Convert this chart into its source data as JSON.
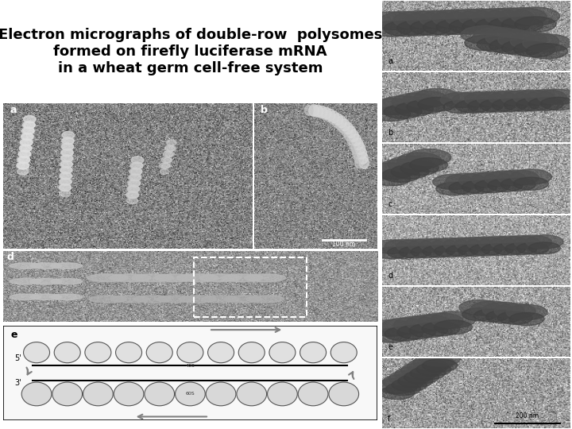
{
  "title_line1": "Electron micrographs of double-row  polysomes",
  "title_line2": "formed on firefly luciferase mRNA",
  "title_line3": "in a wheat germ cell-free system",
  "title_fontsize": 13,
  "title_fontweight": "bold",
  "bg_color": "#ffffff",
  "left_panel_bg": "#888888",
  "right_panel_bg": "#cccccc",
  "bottom_left_bg": "#aaaaaa",
  "diagram_bg": "#f0f0f0",
  "labels": [
    "a",
    "b",
    "c",
    "d",
    "e",
    "f"
  ],
  "panel_labels_left": [
    "a",
    "b"
  ],
  "panel_labels_right_col": [
    "a",
    "b",
    "c",
    "d",
    "e",
    "f"
  ],
  "scale_bar_100nm": "100 nm",
  "scale_bar_200nm": "200 nm"
}
